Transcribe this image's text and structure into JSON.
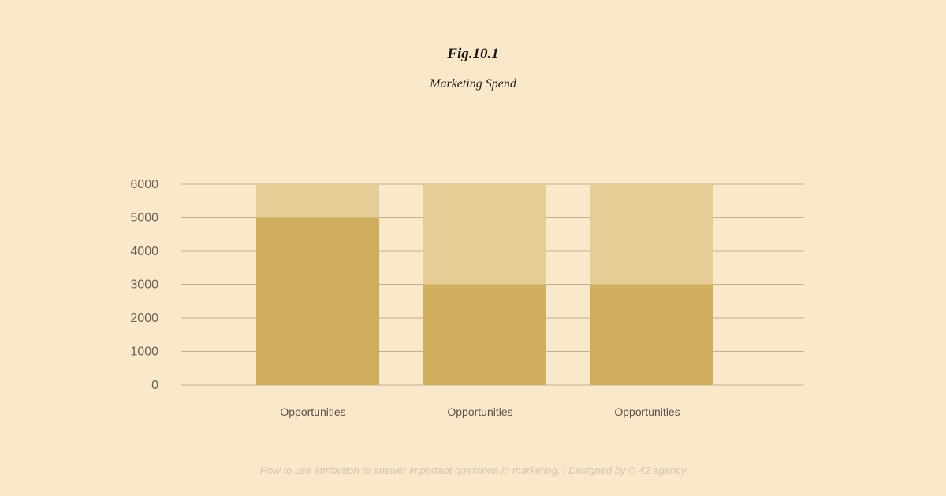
{
  "header": {
    "figure_label": "Fig.10.1",
    "title": "Marketing Spend"
  },
  "footer": {
    "text": "How to use attribution to answer important questions in marketing. | Designed by © 42 agency"
  },
  "colors": {
    "background": "#fae8cb",
    "bar_lower": "#cfae5f",
    "bar_upper": "#e5cd96",
    "gridline": "#c3b28f"
  },
  "chart_data": {
    "type": "bar",
    "stacked": true,
    "title": "Marketing Spend",
    "xlabel": "",
    "ylabel": "",
    "categories": [
      "Opportunities",
      "Opportunities",
      "Opportunities"
    ],
    "series": [
      {
        "values": [
          5000,
          3000,
          3000
        ],
        "color": "#cfae5f"
      },
      {
        "values": [
          1000,
          3000,
          3000
        ],
        "color": "#e5cd96"
      }
    ],
    "ylim": [
      0,
      6000
    ],
    "yticks": [
      0,
      1000,
      2000,
      3000,
      4000,
      5000,
      6000
    ],
    "grid": true,
    "legend": "none"
  }
}
